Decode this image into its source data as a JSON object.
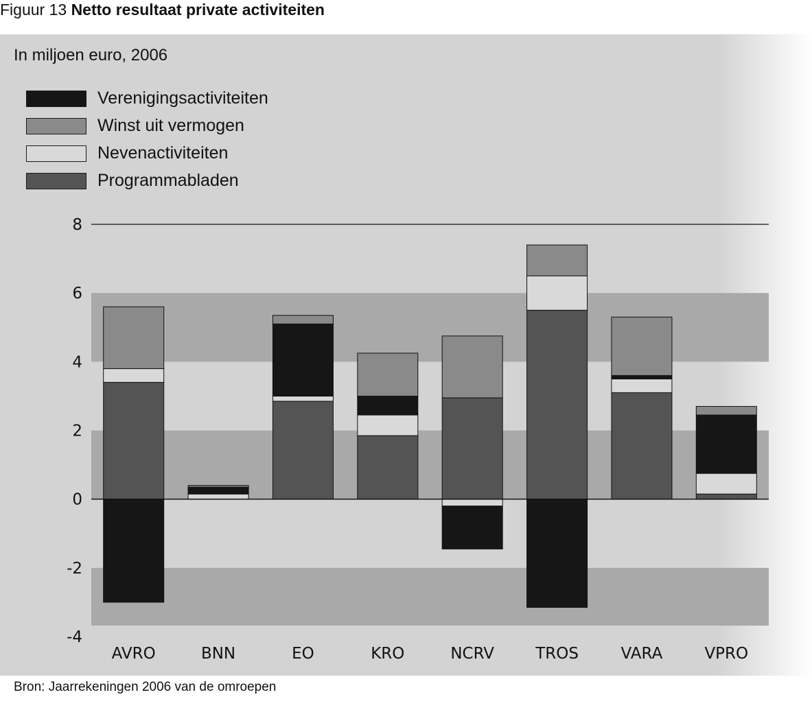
{
  "figure": {
    "number_label": "Figuur 13",
    "title": "Netto resultaat private activiteiten",
    "subtitle": "In miljoen euro, 2006",
    "source": "Bron: Jaarrekeningen 2006 van de omroepen"
  },
  "colors": {
    "Verenigingsactiviteiten": "#161616",
    "Winst uit vermogen": "#8a8a8a",
    "Nevenactiviteiten": "#d9d9d9",
    "Programmabladen": "#545454",
    "band_dark": "#a9a9a9",
    "band_light": "#d3d3d3"
  },
  "chart_data": {
    "type": "bar",
    "stacked": true,
    "title": "Netto resultaat private activiteiten",
    "ylabel": "In miljoen euro, 2006",
    "xlabel": "",
    "ylim": [
      -4,
      8
    ],
    "yticks": [
      8,
      6,
      4,
      2,
      0,
      -2,
      -4
    ],
    "categories": [
      "AVRO",
      "BNN",
      "EO",
      "KRO",
      "NCRV",
      "TROS",
      "VARA",
      "VPRO"
    ],
    "series": [
      {
        "name": "Programmabladen",
        "values": [
          3.4,
          0.0,
          2.85,
          1.85,
          2.95,
          5.5,
          3.1,
          0.15
        ]
      },
      {
        "name": "Nevenactiviteiten",
        "values": [
          0.4,
          0.15,
          0.15,
          0.6,
          -0.2,
          1.0,
          0.4,
          0.6
        ]
      },
      {
        "name": "Verenigingsactiviteiten",
        "values": [
          -3.0,
          0.2,
          2.1,
          0.55,
          -1.25,
          -3.15,
          0.1,
          1.7
        ]
      },
      {
        "name": "Winst uit vermogen",
        "values": [
          1.8,
          0.05,
          0.25,
          1.25,
          1.8,
          0.9,
          1.7,
          0.25
        ]
      }
    ],
    "legend": [
      "Verenigingsactiviteiten",
      "Winst uit vermogen",
      "Nevenactiviteiten",
      "Programmabladen"
    ],
    "legend_position": "top-left",
    "grid": "alternating horizontal bands"
  }
}
